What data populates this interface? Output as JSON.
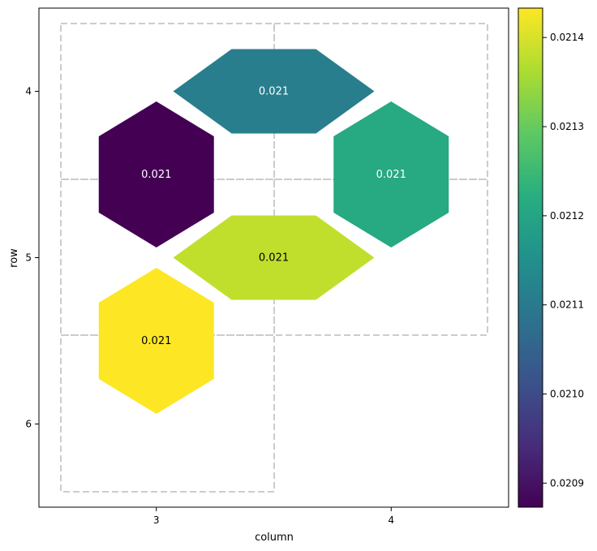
{
  "chart_data": {
    "type": "heatmap",
    "title": "",
    "xlabel": "column",
    "ylabel": "row",
    "x_ticks": [
      3,
      4
    ],
    "y_ticks": [
      4,
      5,
      6
    ],
    "x_range": [
      2.5,
      4.5
    ],
    "y_range": [
      6.5,
      3.5
    ],
    "y_inverted": true,
    "grid": false,
    "cells": [
      {
        "row": 4,
        "col": 3.5,
        "value": 0.02111,
        "label": "0.021",
        "shape": "flat-hex",
        "label_color": "#ffffff"
      },
      {
        "row": 4.5,
        "col": 3,
        "value": 0.020873,
        "label": "0.021",
        "shape": "hex",
        "label_color": "#ffffff"
      },
      {
        "row": 4.5,
        "col": 4,
        "value": 0.02121,
        "label": "0.021",
        "shape": "hex",
        "label_color": "#ffffff"
      },
      {
        "row": 5,
        "col": 3.5,
        "value": 0.02138,
        "label": "0.021",
        "shape": "flat-hex",
        "label_color": "#000000"
      },
      {
        "row": 5.5,
        "col": 3,
        "value": 0.021433,
        "label": "0.021",
        "shape": "hex",
        "label_color": "#000000"
      }
    ],
    "dashed_boxes": [
      {
        "cols": [
          2.5,
          3.5
        ],
        "rows": [
          3.5,
          4.5
        ]
      },
      {
        "cols": [
          3.5,
          4.5
        ],
        "rows": [
          3.5,
          4.5
        ]
      },
      {
        "cols": [
          2.5,
          3.5
        ],
        "rows": [
          4.5,
          5.5
        ]
      },
      {
        "cols": [
          3.5,
          4.5
        ],
        "rows": [
          4.5,
          5.5
        ]
      },
      {
        "cols": [
          2.5,
          3.5
        ],
        "rows": [
          5.5,
          6.5
        ]
      }
    ],
    "colorbar": {
      "colormap": "viridis",
      "vmin": 0.020873,
      "vmax": 0.021433,
      "ticks": [
        "0.0209",
        "0.0210",
        "0.0211",
        "0.0212",
        "0.0213",
        "0.0214"
      ],
      "tick_values": [
        0.0209,
        0.021,
        0.0211,
        0.0212,
        0.0213,
        0.0214
      ]
    }
  }
}
